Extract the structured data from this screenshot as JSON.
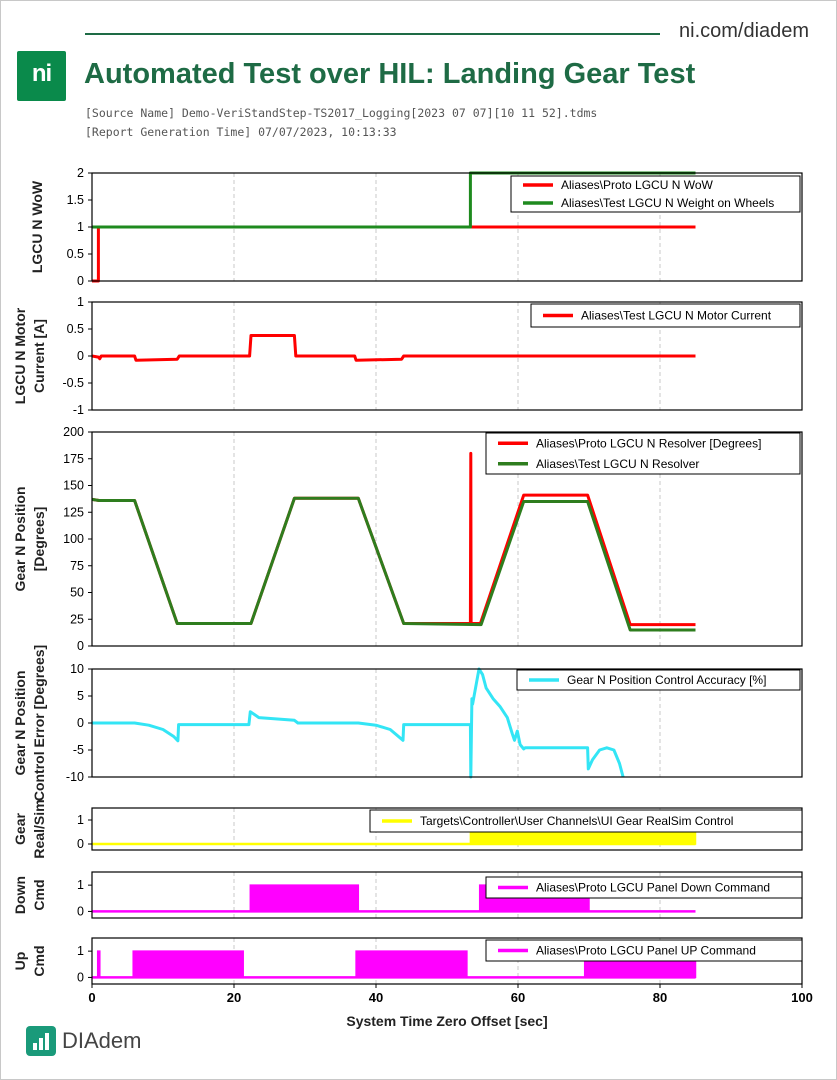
{
  "header": {
    "site": "ni.com/diadem",
    "logo_text": "ni",
    "title": "Automated Test over HIL: Landing Gear Test",
    "source_name": "[Source Name] Demo-VeriStandStep-TS2017_Logging[2023 07 07][10 11 52].tdms",
    "report_time": "[Report Generation Time] 07/07/2023, 10:13:33"
  },
  "footer": {
    "brand": "DIAdem"
  },
  "chart_data": [
    {
      "type": "line",
      "ylabel": [
        "LGCU N WoW"
      ],
      "ylim": [
        0,
        2
      ],
      "yticks": [
        0,
        0.5,
        1,
        1.5,
        2
      ],
      "yticklabels": [
        "0",
        "0.5",
        "1",
        "1.5",
        "2"
      ],
      "xlim": [
        0,
        100
      ],
      "legend": "top-right",
      "series": [
        {
          "name": "Aliases\\Proto LGCU N WoW",
          "color": "#ff0000",
          "x": [
            0,
            0.9,
            0.9,
            1.0,
            1.0,
            53.5,
            53.5,
            85
          ],
          "y": [
            0,
            0,
            1,
            1,
            1,
            1,
            1,
            1
          ]
        },
        {
          "name": "Aliases\\Test LGCU N Weight on Wheels",
          "color": "#1e8a1e",
          "x": [
            0,
            53.3,
            53.3,
            85
          ],
          "y": [
            1,
            1,
            2,
            2
          ]
        }
      ]
    },
    {
      "type": "line",
      "ylabel": [
        "LGCU N Motor",
        "Current [A]"
      ],
      "ylim": [
        -1,
        1
      ],
      "yticks": [
        -1,
        -0.5,
        0,
        0.5,
        1
      ],
      "yticklabels": [
        "-1",
        "-0.5",
        "0",
        "0.5",
        "1"
      ],
      "xlim": [
        0,
        100
      ],
      "legend": "top-right",
      "series": [
        {
          "name": "Aliases\\Test LGCU N Motor Current",
          "color": "#ff0000",
          "x": [
            0,
            0.9,
            1.1,
            1.3,
            6,
            6.2,
            12,
            12.3,
            22.2,
            22.4,
            28.5,
            28.7,
            37,
            37.2,
            43.6,
            43.9,
            85
          ],
          "y": [
            0,
            -0.02,
            -0.05,
            0,
            0,
            -0.08,
            -0.06,
            0,
            0,
            0.38,
            0.38,
            0,
            0,
            -0.08,
            -0.06,
            0,
            0
          ]
        }
      ]
    },
    {
      "type": "line",
      "ylabel": [
        "Gear N Position",
        "[Degrees]"
      ],
      "ylim": [
        0,
        200
      ],
      "yticks": [
        0,
        25,
        50,
        75,
        100,
        125,
        150,
        175,
        200
      ],
      "yticklabels": [
        "0",
        "25",
        "50",
        "75",
        "100",
        "125",
        "150",
        "175",
        "200"
      ],
      "xlim": [
        0,
        100
      ],
      "legend": "top-right",
      "series": [
        {
          "name": "Aliases\\Proto LGCU N Resolver [Degrees]",
          "color": "#ff0000",
          "x": [
            0,
            1,
            6,
            12,
            22.4,
            28.5,
            37.5,
            43.9,
            53.3,
            53.35,
            53.4,
            53.5,
            54.7,
            60.8,
            69.8,
            75.8,
            85
          ],
          "y": [
            137,
            136,
            136,
            21,
            21,
            138,
            138,
            21,
            21,
            180,
            22,
            21,
            21,
            141,
            141,
            20,
            20
          ]
        },
        {
          "name": "Aliases\\Test LGCU N Resolver",
          "color": "#2e7d1e",
          "x": [
            0,
            1,
            6,
            12,
            22.4,
            28.5,
            37.5,
            43.9,
            54.8,
            60.8,
            69.8,
            75.8,
            85
          ],
          "y": [
            137,
            136,
            136,
            21,
            21,
            138,
            138,
            21,
            20,
            135,
            135,
            15,
            15
          ]
        }
      ]
    },
    {
      "type": "line",
      "ylabel": [
        "Gear N Position",
        "Control Error [Degrees]"
      ],
      "ylim": [
        -10,
        10
      ],
      "yticks": [
        -10,
        -5,
        0,
        5,
        10
      ],
      "yticklabels": [
        "-10",
        "-5",
        "0",
        "5",
        "10"
      ],
      "xlim": [
        0,
        100
      ],
      "legend": "top-right",
      "series": [
        {
          "name": "Gear N Position Control Accuracy [%]",
          "color": "#33e5f5",
          "x": [
            0,
            6,
            8,
            10,
            11.5,
            12.1,
            12.2,
            22.1,
            22.3,
            23.5,
            28.5,
            29,
            37.5,
            40,
            42,
            43.8,
            43.9,
            53.3,
            53.35,
            53.5,
            53.6,
            54.5,
            55,
            55.5,
            56.5,
            57.5,
            58.5,
            59.2,
            59.5,
            59.9,
            60.3,
            60.8,
            61,
            69.8,
            69.9,
            70.5,
            71.5,
            72.5,
            73.5,
            74.3,
            74.8
          ],
          "y": [
            0,
            0,
            -0.4,
            -1.2,
            -2.5,
            -3.3,
            -0.3,
            -0.3,
            2.1,
            1,
            0.5,
            0,
            0,
            -0.4,
            -1.2,
            -3.2,
            -0.3,
            -0.3,
            -10,
            4.5,
            3.5,
            10,
            9,
            6.5,
            4.5,
            3,
            1,
            -2,
            -3.2,
            -1.5,
            -4,
            -4.8,
            -4.6,
            -4.6,
            -8.5,
            -6.8,
            -5,
            -4.6,
            -5,
            -7.5,
            -10
          ]
        }
      ]
    },
    {
      "type": "area",
      "ylabel": [
        "Gear",
        "Real/Sim"
      ],
      "ylim": [
        -0.25,
        1.5
      ],
      "yticks": [
        0,
        1
      ],
      "yticklabels": [
        "0",
        "1"
      ],
      "xlim": [
        0,
        100
      ],
      "legend": "top-right",
      "series": [
        {
          "name": "Targets\\Controller\\User Channels\\UI Gear RealSim Control",
          "color": "#ffff00",
          "x": [
            0,
            53.3,
            53.3,
            85,
            85
          ],
          "y": [
            0,
            0,
            1,
            1,
            0
          ]
        }
      ]
    },
    {
      "type": "area",
      "ylabel": [
        "Down",
        "Cmd"
      ],
      "ylim": [
        -0.25,
        1.5
      ],
      "yticks": [
        0,
        1
      ],
      "yticklabels": [
        "0",
        "1"
      ],
      "xlim": [
        0,
        100
      ],
      "legend": "top-right",
      "series": [
        {
          "name": "Aliases\\Proto LGCU Panel Down Command",
          "color": "#ff00ff",
          "x": [
            0,
            22.3,
            22.3,
            37.5,
            37.5,
            54.6,
            54.6,
            70,
            70,
            85
          ],
          "y": [
            0,
            0,
            1,
            1,
            0,
            0,
            1,
            1,
            0,
            0
          ]
        }
      ]
    },
    {
      "type": "area",
      "ylabel": [
        "Up",
        "Cmd"
      ],
      "ylim": [
        -0.25,
        1.5
      ],
      "yticks": [
        0,
        1
      ],
      "yticklabels": [
        "0",
        "1"
      ],
      "xlim": [
        0,
        100
      ],
      "xticks": [
        0,
        20,
        40,
        60,
        80,
        100
      ],
      "xticklabels": [
        "0",
        "20",
        "40",
        "60",
        "80",
        "100"
      ],
      "xlabel": "System Time Zero Offset [sec]",
      "legend": "top-right",
      "series": [
        {
          "name": "Aliases\\Proto LGCU Panel UP Command",
          "color": "#ff00ff",
          "x": [
            0,
            0.8,
            0.8,
            1.1,
            1.1,
            5.8,
            5.8,
            21.3,
            21.3,
            37.2,
            37.2,
            52.8,
            52.8,
            69.4,
            69.4,
            85,
            85
          ],
          "y": [
            0,
            0,
            1,
            1,
            0,
            0,
            1,
            1,
            0,
            0,
            1,
            1,
            0,
            0,
            1,
            1,
            0
          ]
        }
      ]
    }
  ]
}
